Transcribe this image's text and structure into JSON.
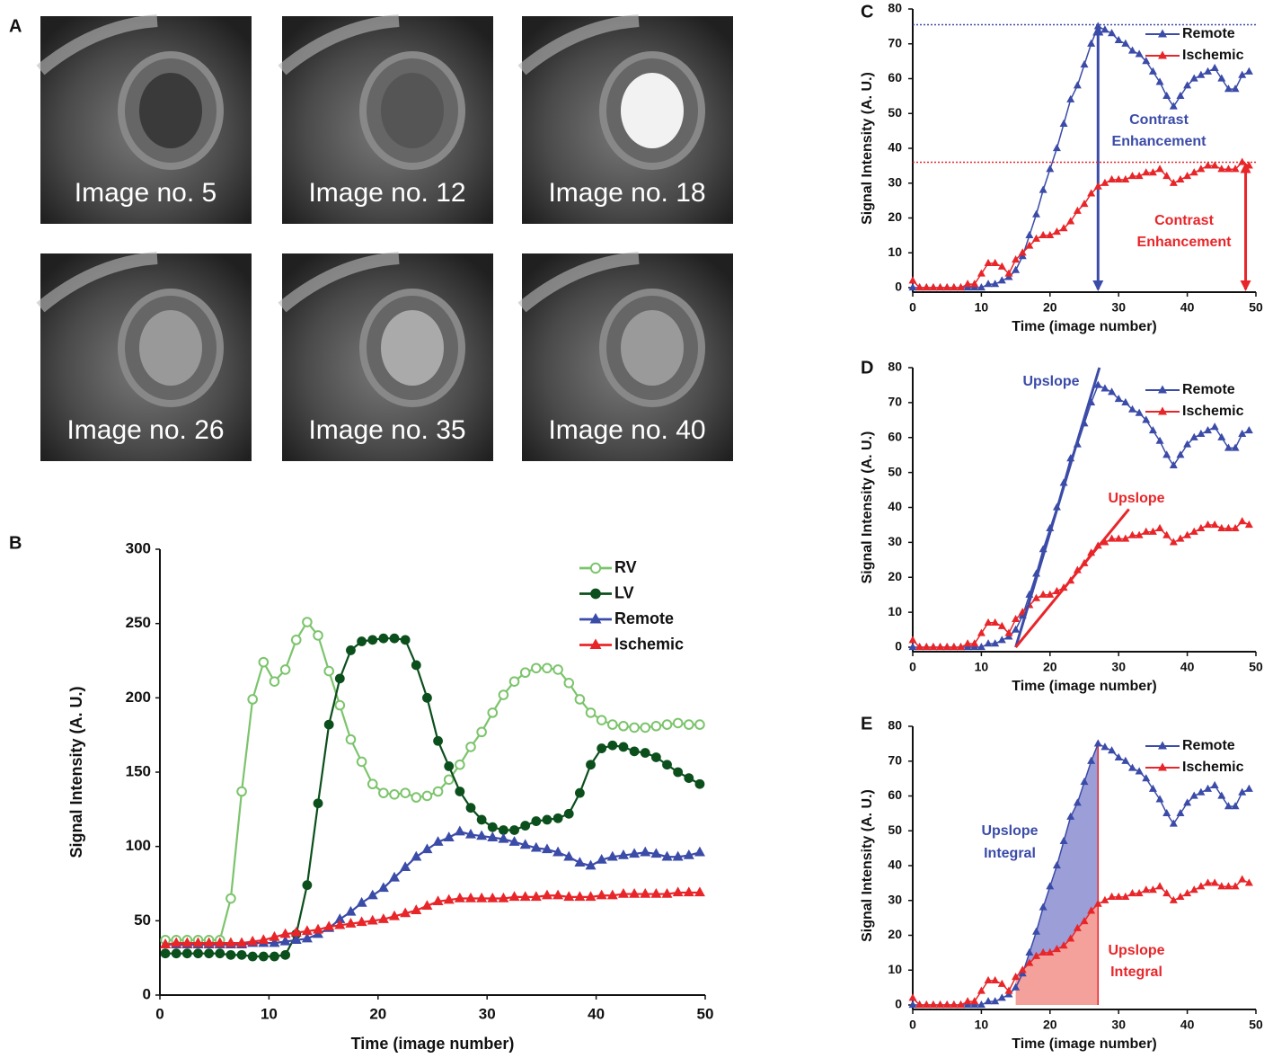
{
  "image_panel": {
    "panel_label": "A",
    "captions": [
      "Image no. 5",
      "Image no. 12",
      "Image no. 18",
      "Image no. 26",
      "Image no. 35",
      "Image no. 40"
    ]
  },
  "chart_data": [
    {
      "type": "line",
      "panel_label": "B",
      "x_label": "Time (image number)",
      "y_label": "Signal Intensity (A. U.)",
      "x": [
        0.5,
        1.5,
        2.5,
        3.5,
        4.5,
        5.5,
        6.5,
        7.5,
        8.5,
        9.5,
        10.5,
        11.5,
        12.5,
        13.5,
        14.5,
        15.5,
        16.5,
        17.5,
        18.5,
        19.5,
        20.5,
        21.5,
        22.5,
        23.5,
        24.5,
        25.5,
        26.5,
        27.5,
        28.5,
        29.5,
        30.5,
        31.5,
        32.5,
        33.5,
        34.5,
        35.5,
        36.5,
        37.5,
        38.5,
        39.5,
        40.5,
        41.5,
        42.5,
        43.5,
        44.5,
        45.5,
        46.5,
        47.5,
        48.5,
        49.5
      ],
      "xlim": [
        0,
        50
      ],
      "xticks": [
        0,
        10,
        20,
        30,
        40,
        50
      ],
      "ylim": [
        0,
        300
      ],
      "yticks": [
        0,
        50,
        100,
        150,
        200,
        250,
        300
      ],
      "legend": "upper right",
      "series": [
        {
          "name": "RV",
          "color": "#7cc46c",
          "marker": "open-circle",
          "values": [
            37,
            37,
            37,
            37,
            37,
            37,
            65,
            137,
            199,
            224,
            211,
            219,
            239,
            251,
            242,
            218,
            195,
            172,
            157,
            142,
            136,
            135,
            136,
            133,
            134,
            137,
            145,
            155,
            167,
            177,
            190,
            202,
            211,
            217,
            220,
            220,
            219,
            210,
            199,
            190,
            185,
            182,
            181,
            180,
            180,
            181,
            182,
            183,
            182,
            182
          ]
        },
        {
          "name": "LV",
          "color": "#0b4f1c",
          "marker": "circle",
          "values": [
            28,
            28,
            28,
            28,
            28,
            28,
            27,
            27,
            26,
            26,
            26,
            27,
            41,
            74,
            129,
            182,
            213,
            232,
            238,
            239,
            240,
            240,
            239,
            222,
            200,
            171,
            154,
            137,
            126,
            118,
            113,
            111,
            111,
            114,
            117,
            118,
            119,
            122,
            136,
            155,
            166,
            168,
            167,
            164,
            163,
            160,
            155,
            150,
            146,
            142
          ]
        },
        {
          "name": "Remote",
          "color": "#3b4ba8",
          "marker": "triangle",
          "values": [
            34,
            34,
            34,
            34,
            34,
            34,
            34,
            34,
            35,
            35,
            35,
            36,
            37,
            38,
            41,
            45,
            51,
            56,
            62,
            67,
            72,
            79,
            86,
            93,
            98,
            103,
            106,
            110,
            108,
            107,
            106,
            105,
            103,
            101,
            99,
            98,
            96,
            93,
            89,
            87,
            91,
            93,
            94,
            95,
            96,
            95,
            93,
            93,
            94,
            96
          ]
        },
        {
          "name": "Ischemic",
          "color": "#e8262a",
          "marker": "triangle",
          "values": [
            34,
            35,
            35,
            35,
            35,
            35,
            35,
            35,
            36,
            37,
            39,
            41,
            42,
            43,
            44,
            46,
            47,
            48,
            49,
            50,
            51,
            53,
            55,
            57,
            60,
            63,
            64,
            65,
            65,
            65,
            65,
            65,
            66,
            66,
            66,
            67,
            67,
            66,
            66,
            66,
            67,
            67,
            68,
            68,
            68,
            68,
            68,
            69,
            69,
            69
          ]
        }
      ]
    },
    {
      "type": "line",
      "panel_label": "C",
      "x_label": "Time (image number)",
      "y_label": "Signal Intensity (A. U.)",
      "x": [
        0,
        1,
        2,
        3,
        4,
        5,
        6,
        7,
        8,
        9,
        10,
        11,
        12,
        13,
        14,
        15,
        16,
        17,
        18,
        19,
        20,
        21,
        22,
        23,
        24,
        25,
        26,
        27,
        28,
        29,
        30,
        31,
        32,
        33,
        34,
        35,
        36,
        37,
        38,
        39,
        40,
        41,
        42,
        43,
        44,
        45,
        46,
        47,
        48,
        49
      ],
      "xlim": [
        0,
        50
      ],
      "xticks": [
        0,
        10,
        20,
        30,
        40,
        50
      ],
      "ylim": [
        0,
        80
      ],
      "yticks": [
        0,
        10,
        20,
        30,
        40,
        50,
        60,
        70,
        80
      ],
      "legend": "upper right",
      "series": [
        {
          "name": "Remote",
          "color": "#3b4ba8",
          "marker": "triangle",
          "values": [
            0,
            0,
            0,
            0,
            0,
            0,
            0,
            0,
            0,
            0,
            0,
            1,
            1,
            2,
            3,
            5,
            9,
            15,
            21,
            28,
            34,
            40,
            47,
            54,
            58,
            64,
            70,
            75,
            74,
            73,
            71,
            70,
            68,
            67,
            65,
            62,
            59,
            55,
            52,
            55,
            58,
            60,
            61,
            62,
            63,
            60,
            57,
            57,
            61,
            62
          ]
        },
        {
          "name": "Ischemic",
          "color": "#e8262a",
          "marker": "triangle",
          "values": [
            2,
            0,
            0,
            0,
            0,
            0,
            0,
            0,
            1,
            1,
            4,
            7,
            7,
            6,
            4,
            8,
            10,
            12,
            14,
            15,
            15,
            16,
            17,
            19,
            22,
            24,
            27,
            29,
            30,
            31,
            31,
            31,
            32,
            32,
            33,
            33,
            34,
            32,
            30,
            31,
            32,
            33,
            34,
            35,
            35,
            34,
            34,
            34,
            36,
            35
          ]
        }
      ],
      "enhancements": [
        {
          "x": 27,
          "y": 75.5,
          "color": "#3b4ba8",
          "label": [
            "Contrast",
            "Enhancement"
          ]
        },
        {
          "x": 48.5,
          "y": 36,
          "color": "#e8262a",
          "label": [
            "Contrast",
            "Enhancement"
          ]
        }
      ]
    },
    {
      "type": "line",
      "panel_label": "D",
      "x_label": "Time (image number)",
      "y_label": "Signal Intensity (A. U.)",
      "x": [
        0,
        1,
        2,
        3,
        4,
        5,
        6,
        7,
        8,
        9,
        10,
        11,
        12,
        13,
        14,
        15,
        16,
        17,
        18,
        19,
        20,
        21,
        22,
        23,
        24,
        25,
        26,
        27,
        28,
        29,
        30,
        31,
        32,
        33,
        34,
        35,
        36,
        37,
        38,
        39,
        40,
        41,
        42,
        43,
        44,
        45,
        46,
        47,
        48,
        49
      ],
      "xlim": [
        0,
        50
      ],
      "xticks": [
        0,
        10,
        20,
        30,
        40,
        50
      ],
      "ylim": [
        0,
        80
      ],
      "yticks": [
        0,
        10,
        20,
        30,
        40,
        50,
        60,
        70,
        80
      ],
      "legend": "upper right",
      "series": [
        {
          "name": "Remote",
          "color": "#3b4ba8",
          "marker": "triangle",
          "values": [
            0,
            0,
            0,
            0,
            0,
            0,
            0,
            0,
            0,
            0,
            0,
            1,
            1,
            2,
            3,
            5,
            9,
            15,
            21,
            28,
            34,
            40,
            47,
            54,
            58,
            64,
            70,
            75,
            74,
            73,
            71,
            70,
            68,
            67,
            65,
            62,
            59,
            55,
            52,
            55,
            58,
            60,
            61,
            62,
            63,
            60,
            57,
            57,
            61,
            62
          ]
        },
        {
          "name": "Ischemic",
          "color": "#e8262a",
          "marker": "triangle",
          "values": [
            2,
            0,
            0,
            0,
            0,
            0,
            0,
            0,
            1,
            1,
            4,
            7,
            7,
            6,
            4,
            8,
            10,
            12,
            14,
            15,
            15,
            16,
            17,
            19,
            22,
            24,
            27,
            29,
            30,
            31,
            31,
            31,
            32,
            32,
            33,
            33,
            34,
            32,
            30,
            31,
            32,
            33,
            34,
            35,
            35,
            34,
            34,
            34,
            36,
            35
          ]
        }
      ],
      "fits": [
        {
          "x": [
            15,
            27.2
          ],
          "y": [
            0,
            80
          ],
          "color": "#3b4ba8",
          "label": "Upslope"
        },
        {
          "x": [
            15,
            31.5
          ],
          "y": [
            0,
            39.5
          ],
          "color": "#e8262a",
          "label": "Upslope"
        }
      ]
    },
    {
      "type": "line",
      "panel_label": "E",
      "x_label": "Time (image number)",
      "y_label": "Signal Intensity (A. U.)",
      "x": [
        0,
        1,
        2,
        3,
        4,
        5,
        6,
        7,
        8,
        9,
        10,
        11,
        12,
        13,
        14,
        15,
        16,
        17,
        18,
        19,
        20,
        21,
        22,
        23,
        24,
        25,
        26,
        27,
        28,
        29,
        30,
        31,
        32,
        33,
        34,
        35,
        36,
        37,
        38,
        39,
        40,
        41,
        42,
        43,
        44,
        45,
        46,
        47,
        48,
        49
      ],
      "xlim": [
        0,
        50
      ],
      "xticks": [
        0,
        10,
        20,
        30,
        40,
        50
      ],
      "ylim": [
        0,
        80
      ],
      "yticks": [
        0,
        10,
        20,
        30,
        40,
        50,
        60,
        70,
        80
      ],
      "legend": "upper right",
      "series": [
        {
          "name": "Remote",
          "color": "#3b4ba8",
          "marker": "triangle",
          "values": [
            0,
            0,
            0,
            0,
            0,
            0,
            0,
            0,
            0,
            0,
            0,
            1,
            1,
            2,
            3,
            5,
            9,
            15,
            21,
            28,
            34,
            40,
            47,
            54,
            58,
            64,
            70,
            75,
            74,
            73,
            71,
            70,
            68,
            67,
            65,
            62,
            59,
            55,
            52,
            55,
            58,
            60,
            61,
            62,
            63,
            60,
            57,
            57,
            61,
            62
          ]
        },
        {
          "name": "Ischemic",
          "color": "#e8262a",
          "marker": "triangle",
          "values": [
            2,
            0,
            0,
            0,
            0,
            0,
            0,
            0,
            1,
            1,
            4,
            7,
            7,
            6,
            4,
            8,
            10,
            12,
            14,
            15,
            15,
            16,
            17,
            19,
            22,
            24,
            27,
            29,
            30,
            31,
            31,
            31,
            32,
            32,
            33,
            33,
            34,
            32,
            30,
            31,
            32,
            33,
            34,
            35,
            35,
            34,
            34,
            34,
            36,
            35
          ]
        }
      ],
      "integral": {
        "range": [
          15,
          27
        ],
        "fills": [
          {
            "color": "#9c9ed8",
            "label": [
              "Upslope",
              "Integral"
            ],
            "label_color": "#3b4ba8"
          },
          {
            "color": "#f4a19b",
            "label": [
              "Upslope",
              "Integral"
            ],
            "label_color": "#e8262a"
          }
        ]
      }
    }
  ]
}
